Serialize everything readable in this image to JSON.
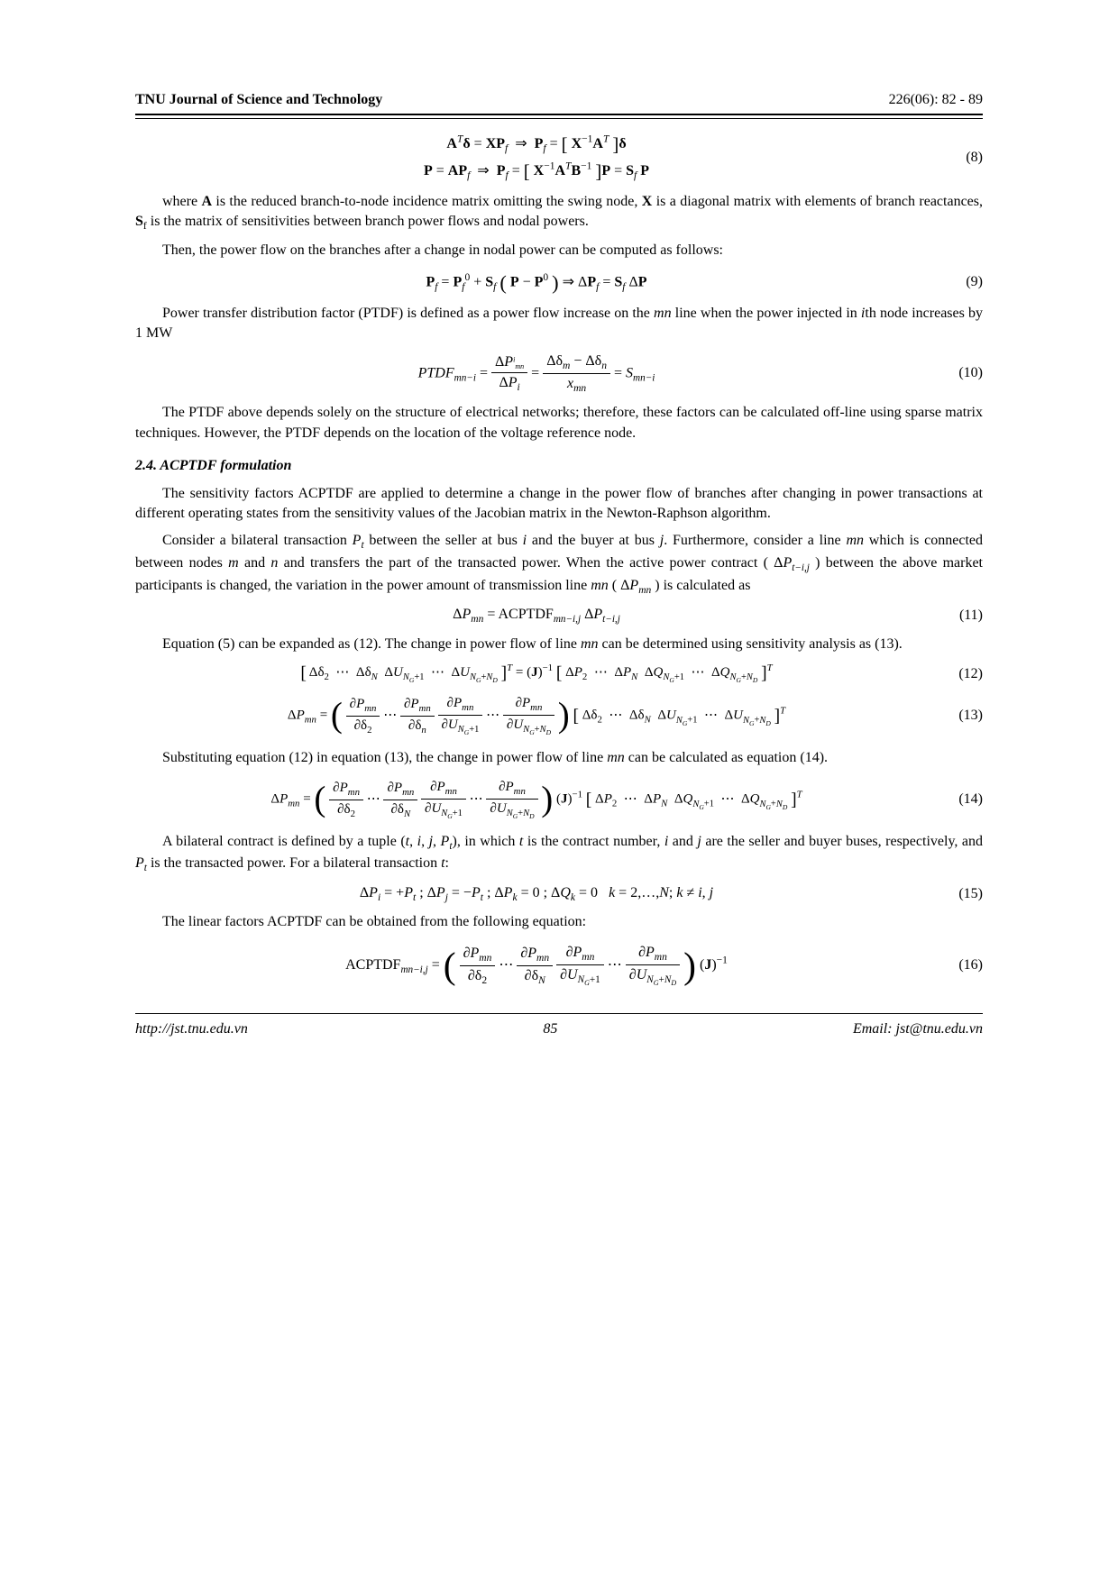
{
  "header": {
    "journal": "TNU Journal of Science and Technology",
    "issue": "226(06): 82 - 89"
  },
  "eq8": {
    "line1": "AᵀΔ = XPf  ⇒  Pf = [ X⁻¹Aᵀ ] δ",
    "line2": "P = APf  ⇒  Pf = [ X⁻¹AᵀB⁻¹ ] P = Sf P",
    "num": "(8)"
  },
  "p1": "where A is the reduced branch-to-node incidence matrix omitting the swing node, X is a diagonal matrix with elements of branch reactances, Sf is the matrix of sensitivities between branch power flows and nodal powers.",
  "p2": "Then, the power flow on the branches after a change in nodal power can be computed as follows:",
  "eq9": {
    "text": "Pf = Pf⁰ + Sf ( P − P⁰ ) ⇒ ΔPf = Sf ΔP",
    "num": "(9)"
  },
  "p3": "Power transfer distribution factor (PTDF) is defined as a power flow increase on the mn line when the power injected in ith node increases by 1 MW",
  "eq10": {
    "lhs": "PTDF",
    "sub_lhs": "mn−i",
    "frac1_n": "ΔPᵢₘₙ",
    "frac1_d": "ΔPᵢ",
    "frac2_n": "Δδₘ − Δδₙ",
    "frac2_d": "xₘₙ",
    "rhs": "S",
    "sub_rhs": "mn−i",
    "num": "(10)"
  },
  "p4": "The PTDF above depends solely on the structure of electrical networks; therefore, these factors can be calculated off-line using sparse matrix techniques. However, the PTDF depends on the location of the voltage reference node.",
  "h24": "2.4. ACPTDF formulation",
  "p5": "The sensitivity factors ACPTDF are applied to determine a change in the power flow of branches after changing in power transactions at different operating states from the sensitivity values of the Jacobian matrix in the Newton-Raphson algorithm.",
  "p6a": "Consider a bilateral transaction ",
  "p6b": " between the seller at bus ",
  "p6c": " and the buyer at bus ",
  "p6d": ". Furthermore, consider a line ",
  "p6e": " which is connected between nodes ",
  "p6f": " and ",
  "p6g": " and transfers the part of the transacted power. When the active power contract (",
  "p6h": ") between the above market participants is changed, the variation in the power amount of transmission line ",
  "p6i": " (",
  "p6j": ") is calculated as",
  "sym": {
    "Pt": "Pₜ",
    "i": "i",
    "j": "j",
    "mn": "mn",
    "m": "m",
    "n": "n",
    "dPtij": "ΔP",
    "dPtij_sub": "t−i,j",
    "dPmn": "ΔP",
    "dPmn_sub": "mn"
  },
  "eq11": {
    "text": "ΔPₘₙ = ACPTDFₘₙ₋ᵢ,ⱼ ΔPₜ₋ᵢ,ⱼ",
    "num": "(11)"
  },
  "p7a": "Equation (5) can be expanded as (12). The change in power flow of line ",
  "p7b": " can be determined using sensitivity analysis as (13).",
  "eq12": {
    "left": "[ Δδ₂   ⋯   Δδ_N   ΔU_{N_G+1}   ⋯   ΔU_{N_G+N_D} ]ᵀ = (J)⁻¹ [ ΔP₂   ⋯   ΔP_N   ΔQ_{N_G+1}   ⋯   ΔQ_{N_G+N_D} ]ᵀ",
    "num": "(12)"
  },
  "eq13": {
    "num": "(13)"
  },
  "p8a": "Substituting equation (12) in equation (13), the change in power flow of line ",
  "p8b": " can be calculated as equation (14).",
  "eq14": {
    "num": "(14)"
  },
  "p9a": "A bilateral contract is defined by a tuple (",
  "p9b": "), in which ",
  "p9c": " is the contract number, ",
  "p9d": " and ",
  "p9e": " are the seller and buyer buses, respectively, and ",
  "p9f": " is the transacted power. For a bilateral transaction ",
  "p9g": ":",
  "tuple": "t, i, j, Pₜ",
  "sym2": {
    "t": "t",
    "i": "i",
    "j": "j",
    "Pt": "Pₜ"
  },
  "eq15": {
    "text": "ΔPᵢ = +Pₜ ; ΔPⱼ = −Pₜ ; ΔPₖ = 0 ; ΔQₖ = 0   k = 2,…,N; k ≠ i, j",
    "num": "(15)"
  },
  "p10": "The linear factors ACPTDF can be obtained from the following equation:",
  "eq16": {
    "num": "(16)"
  },
  "partials": {
    "dPmn": "∂P",
    "dPmn_sub": "mn",
    "dd2": "∂δ₂",
    "ddn": "∂δₙ",
    "ddN": "∂δ_N",
    "dU1": "∂U",
    "dU1_sub": "N_G+1",
    "dU2": "∂U",
    "dU2_sub": "N_G+N_D"
  },
  "vec13": "[ Δδ₂   ⋯   Δδ_N   ΔU_{N_G+1}   ⋯   ΔU_{N_G+N_D} ]ᵀ",
  "vec14": "(J)⁻¹ [ ΔP₂   ⋯   ΔP_N   ΔQ_{N_G+1}   ⋯   ΔQ_{N_G+N_D} ]ᵀ",
  "Jinv": "(J)⁻¹",
  "footer": {
    "url": "http://jst.tnu.edu.vn",
    "page": "85",
    "email": "Email: jst@tnu.edu.vn"
  }
}
